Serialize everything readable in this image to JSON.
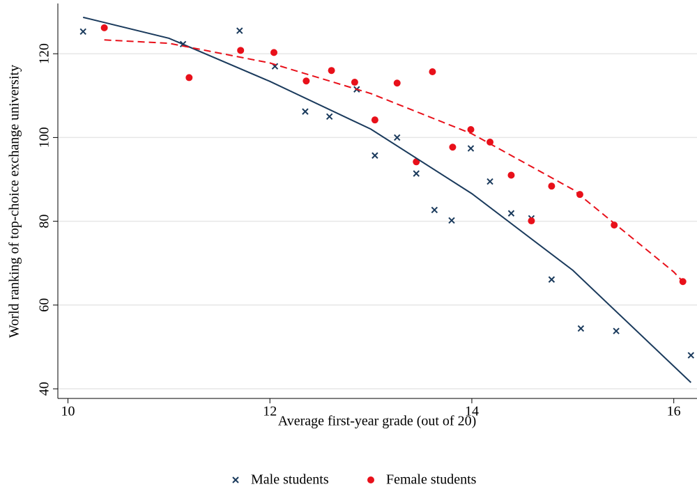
{
  "chart_data": {
    "type": "scatter",
    "x_label": "Average first-year grade (out of 20)",
    "y_label": "World ranking of top-choice exchange university",
    "xlim": [
      9.9,
      16.23
    ],
    "ylim": [
      37.7,
      132
    ],
    "xticks": [
      10,
      12,
      14,
      16
    ],
    "yticks": [
      40,
      60,
      80,
      100,
      120
    ],
    "grid": true,
    "legend": "bottom",
    "series": [
      {
        "name": "Male students",
        "type": "scatter",
        "marker": "x",
        "color": "#1a3a5c",
        "x": [
          10.15,
          11.14,
          11.7,
          12.05,
          12.35,
          12.59,
          12.86,
          13.04,
          13.26,
          13.45,
          13.63,
          13.8,
          13.99,
          14.18,
          14.39,
          14.59,
          14.79,
          15.08,
          15.43,
          16.17
        ],
        "values": [
          125.3,
          122.3,
          125.5,
          117.0,
          106.2,
          105.0,
          111.5,
          95.7,
          100.0,
          91.4,
          82.7,
          80.2,
          97.4,
          89.5,
          81.9,
          80.7,
          66.1,
          54.4,
          53.8,
          48.0
        ]
      },
      {
        "name": "Female students",
        "type": "scatter",
        "marker": "circle",
        "color": "#e8101a",
        "x": [
          10.36,
          11.2,
          11.71,
          12.04,
          12.36,
          12.61,
          12.84,
          13.04,
          13.26,
          13.45,
          13.61,
          13.81,
          13.99,
          14.18,
          14.39,
          14.59,
          14.79,
          15.07,
          15.41,
          16.09
        ],
        "values": [
          126.2,
          114.3,
          120.8,
          120.3,
          113.5,
          116.0,
          113.2,
          104.2,
          113.0,
          94.2,
          115.7,
          97.7,
          101.9,
          98.9,
          91.0,
          80.1,
          88.4,
          86.4,
          79.1,
          65.6
        ]
      },
      {
        "type": "line",
        "dash": false,
        "color": "#1a3a5c",
        "x": [
          10.15,
          11,
          12,
          13,
          14,
          15,
          16.17
        ],
        "values": [
          128.7,
          123.7,
          113.4,
          102.0,
          86.6,
          68.3,
          41.5
        ]
      },
      {
        "type": "line",
        "dash": true,
        "color": "#e8101a",
        "x": [
          10.36,
          11,
          12,
          13,
          14,
          15,
          16,
          16.09
        ],
        "values": [
          123.3,
          122.5,
          117.8,
          110.5,
          100.9,
          87.6,
          67.9,
          65.6
        ]
      }
    ]
  }
}
